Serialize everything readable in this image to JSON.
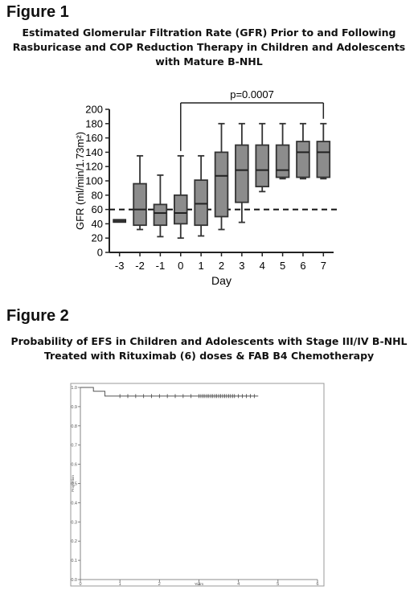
{
  "figure1": {
    "heading": "Figure 1",
    "title_lines": [
      "Estimated Glomerular Filtration Rate (GFR) Prior to and Following",
      "Rasburicase and COP Reduction Therapy in Children and Adolescents",
      "with Mature B-NHL"
    ]
  },
  "figure2": {
    "heading": "Figure 2",
    "title_lines": [
      "Probability of EFS in Children and Adolescents with Stage III/IV B-NHL",
      "Treated with Rituximab (6) doses & FAB B4 Chemotherapy"
    ]
  },
  "chart_data": [
    {
      "type": "box",
      "title": "",
      "xlabel": "Day",
      "ylabel": "GFR (ml/min/1.73m²)",
      "ylim": [
        0,
        200
      ],
      "yticks": [
        0,
        20,
        40,
        60,
        80,
        100,
        120,
        140,
        160,
        180,
        200
      ],
      "categories": [
        "-3",
        "-2",
        "-1",
        "0",
        "1",
        "2",
        "3",
        "4",
        "5",
        "6",
        "7"
      ],
      "boxes": [
        {
          "min": 43,
          "q1": 43,
          "median": 44,
          "q3": 45,
          "max": 45
        },
        {
          "min": 32,
          "q1": 38,
          "median": 60,
          "q3": 96,
          "max": 135
        },
        {
          "min": 22,
          "q1": 38,
          "median": 55,
          "q3": 67,
          "max": 108
        },
        {
          "min": 20,
          "q1": 40,
          "median": 55,
          "q3": 80,
          "max": 135
        },
        {
          "min": 23,
          "q1": 38,
          "median": 68,
          "q3": 101,
          "max": 135
        },
        {
          "min": 32,
          "q1": 50,
          "median": 107,
          "q3": 140,
          "max": 180
        },
        {
          "min": 42,
          "q1": 70,
          "median": 115,
          "q3": 150,
          "max": 180
        },
        {
          "min": 85,
          "q1": 92,
          "median": 115,
          "q3": 150,
          "max": 180
        },
        {
          "min": 103,
          "q1": 105,
          "median": 115,
          "q3": 150,
          "max": 180
        },
        {
          "min": 103,
          "q1": 105,
          "median": 140,
          "q3": 155,
          "max": 180
        },
        {
          "min": 103,
          "q1": 105,
          "median": 140,
          "q3": 155,
          "max": 180
        }
      ],
      "reference_line": {
        "y": 60,
        "style": "dashed"
      },
      "annotation": {
        "label": "p=0.0007",
        "from": "0",
        "to": "7"
      },
      "grid": false
    },
    {
      "type": "line",
      "title": "",
      "xlabel": "Years",
      "ylabel": "Proportion",
      "ylim": [
        0,
        1.0
      ],
      "xlim": [
        0,
        6
      ],
      "yticks": [
        "0.0",
        "0.1",
        "0.2",
        "0.3",
        "0.4",
        "0.5",
        "0.6",
        "0.7",
        "0.8",
        "0.9",
        "1.0"
      ],
      "xticks": [
        "0",
        "1",
        "2",
        "3",
        "4",
        "5",
        "6"
      ],
      "series": [
        {
          "name": "",
          "steps": [
            [
              0,
              1.0
            ],
            [
              0.33,
              0.98
            ],
            [
              0.62,
              0.955
            ],
            [
              4.5,
              0.955
            ]
          ],
          "censor_times": [
            1.0,
            1.2,
            1.4,
            1.6,
            1.8,
            2.0,
            2.2,
            2.4,
            2.6,
            2.8,
            3.0,
            3.05,
            3.1,
            3.15,
            3.2,
            3.25,
            3.3,
            3.35,
            3.4,
            3.45,
            3.5,
            3.55,
            3.6,
            3.65,
            3.7,
            3.75,
            3.8,
            3.85,
            3.9,
            4.0,
            4.1,
            4.2,
            4.3,
            4.4
          ]
        }
      ],
      "grid": false
    }
  ]
}
